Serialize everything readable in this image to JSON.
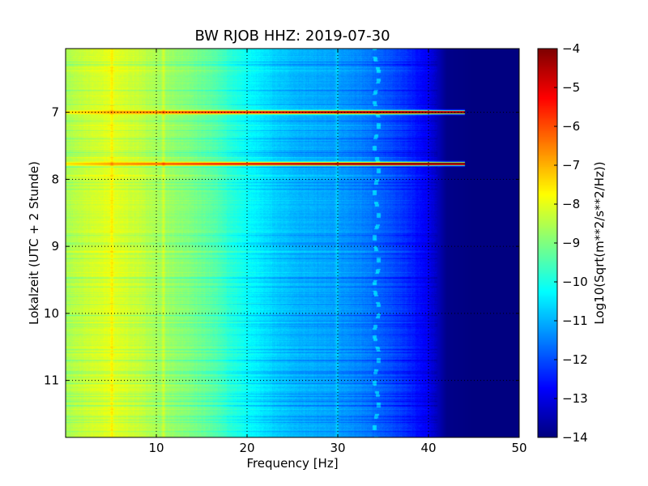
{
  "chart_data": {
    "type": "heatmap",
    "title": "BW RJOB HHZ: 2019-07-30",
    "xlabel": "Frequency [Hz]",
    "ylabel": "Lokalzeit (UTC + 2 Stunde)",
    "xlim": [
      0,
      50
    ],
    "ylim": [
      6.05,
      11.85
    ],
    "y_axis_inverted": true,
    "grid": true,
    "colormap": "jet",
    "x_ticks": [
      10,
      20,
      30,
      40,
      50
    ],
    "x_tick_labels": [
      "10",
      "20",
      "30",
      "40",
      "50"
    ],
    "y_ticks": [
      7,
      8,
      9,
      10,
      11
    ],
    "y_tick_labels": [
      "7",
      "8",
      "9",
      "10",
      "11"
    ],
    "colorbar": {
      "label": "Log10(Sqrt(m**2/s**2/Hz))",
      "range": [
        -14,
        -4
      ],
      "ticks": [
        -4,
        -5,
        -6,
        -7,
        -8,
        -9,
        -10,
        -11,
        -12,
        -13,
        -14
      ],
      "tick_labels": [
        "−4",
        "−5",
        "−6",
        "−7",
        "−8",
        "−9",
        "−10",
        "−11",
        "−12",
        "−13",
        "−14"
      ]
    },
    "spectral_profile": {
      "frequency_hz": [
        0,
        2,
        5,
        8,
        10,
        13,
        16,
        18,
        20,
        23,
        26,
        30,
        33,
        36,
        38,
        40,
        41,
        42,
        45,
        50
      ],
      "log10_amplitude": [
        -8.6,
        -8.3,
        -8.0,
        -8.3,
        -8.6,
        -8.9,
        -9.3,
        -9.8,
        -10.2,
        -10.7,
        -11.0,
        -11.2,
        -11.5,
        -12.0,
        -12.4,
        -12.9,
        -13.4,
        -13.9,
        -14.0,
        -14.0
      ]
    },
    "strong_bands": [
      {
        "time_h": 7.0,
        "peak": -7.4
      },
      {
        "time_h": 7.77,
        "peak": -7.4
      }
    ],
    "tonal_lines_hz": [
      5.1,
      10.8,
      29.9
    ],
    "gliding_tone_hz": 34.3
  }
}
